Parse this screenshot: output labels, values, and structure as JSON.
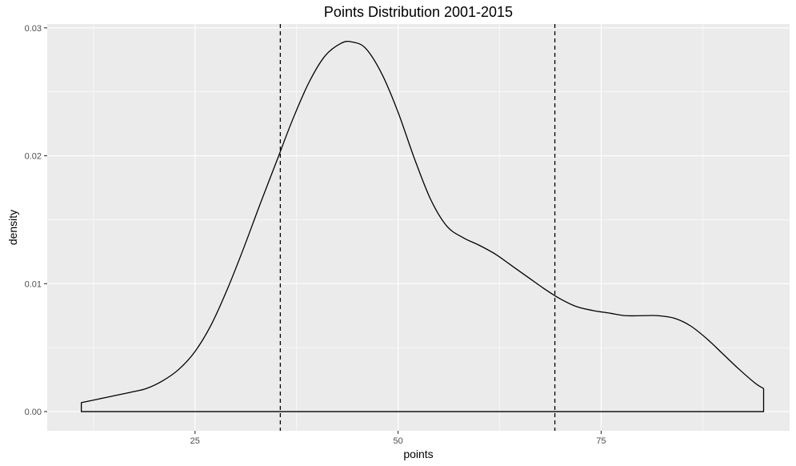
{
  "chart_data": {
    "type": "area",
    "title": "Points Distribution 2001-2015",
    "xlabel": "points",
    "ylabel": "density",
    "xlim": [
      6.8,
      98.2
    ],
    "ylim": [
      -0.0015,
      0.0303
    ],
    "x_ticks": [
      25,
      50,
      75
    ],
    "x_tick_labels": [
      "25",
      "50",
      "75"
    ],
    "y_ticks": [
      0,
      0.01,
      0.02,
      0.03
    ],
    "y_tick_labels": [
      "0.00",
      "0.01",
      "0.02",
      "0.03"
    ],
    "grid": true,
    "legend": "none",
    "colors": {
      "panel_background": "#ebebeb",
      "grid_major": "#ffffff",
      "curve": "#000000",
      "reference_line": "#000000"
    },
    "series": [
      {
        "x": [
          11,
          14,
          17,
          19,
          21,
          23,
          25,
          27,
          29,
          31,
          33,
          35,
          37,
          39,
          41,
          43,
          44.3,
          46,
          48,
          50,
          52,
          54,
          56,
          58,
          60,
          62,
          64,
          66,
          68,
          70,
          72,
          74,
          76,
          78,
          80,
          82,
          84,
          86,
          88,
          90,
          92,
          94,
          95
        ],
        "y": [
          0.0007,
          0.0011,
          0.0015,
          0.0018,
          0.0024,
          0.0033,
          0.0047,
          0.0068,
          0.0096,
          0.0128,
          0.0162,
          0.0195,
          0.0228,
          0.0257,
          0.0278,
          0.0288,
          0.0289,
          0.0284,
          0.0264,
          0.0234,
          0.0198,
          0.0166,
          0.0145,
          0.0136,
          0.013,
          0.0123,
          0.0114,
          0.0105,
          0.0096,
          0.0088,
          0.0082,
          0.0079,
          0.0077,
          0.0075,
          0.0075,
          0.0075,
          0.0073,
          0.0067,
          0.0057,
          0.0045,
          0.0033,
          0.0022,
          0.0018
        ]
      }
    ],
    "reference_lines": [
      {
        "axis": "x",
        "value": 35.5,
        "style": "dashed"
      },
      {
        "axis": "x",
        "value": 69.3,
        "style": "dashed"
      }
    ]
  }
}
